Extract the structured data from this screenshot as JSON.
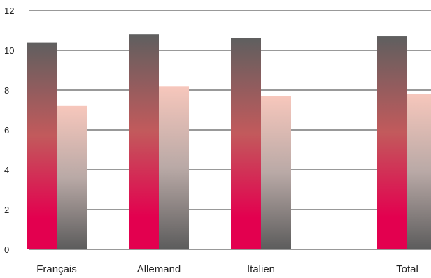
{
  "chart_data": {
    "type": "bar",
    "categories": [
      "Français",
      "Allemand",
      "Italien",
      "Total"
    ],
    "series": [
      {
        "values": [
          10.4,
          10.8,
          10.6,
          10.7
        ]
      },
      {
        "values": [
          7.2,
          8.2,
          7.7,
          7.8
        ]
      }
    ],
    "ylim": [
      0,
      12
    ],
    "yticks": [
      "0",
      "2",
      "4",
      "6",
      "8",
      "10",
      "12"
    ],
    "grid": true,
    "colors": {
      "series1_top": "#5f5f5f",
      "series1_mid": "#c25a5c",
      "series1_bottom": "#e3004f",
      "series2_top": "#f7c7bc",
      "series2_mid": "#b9a9a6",
      "series2_bottom": "#5c5c5c"
    }
  }
}
